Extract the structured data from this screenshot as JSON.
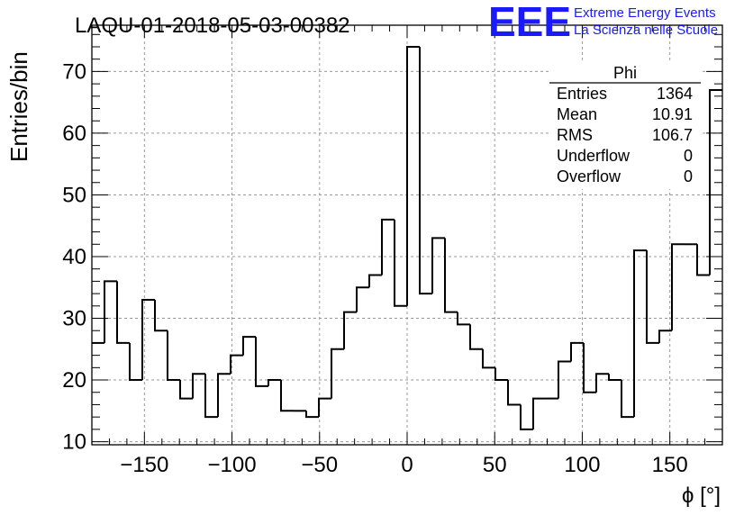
{
  "header": {
    "run_title": "LAQU-01-2018-05-03-00382",
    "logo_text": "EEE",
    "logo_line1": "Extreme Energy Events",
    "logo_line2": "La Scienza nelle Scuole"
  },
  "stats": {
    "name": "Phi",
    "rows": [
      {
        "label": "Entries",
        "value": "1364"
      },
      {
        "label": "Mean",
        "value": "10.91"
      },
      {
        "label": "RMS",
        "value": "106.7"
      },
      {
        "label": "Underflow",
        "value": "0"
      },
      {
        "label": "Overflow",
        "value": "0"
      }
    ]
  },
  "colors": {
    "logo": "#1a1aff",
    "line": "#000000",
    "grid": "#9a9a9a"
  },
  "chart_data": {
    "type": "histogram",
    "title": "LAQU-01-2018-05-03-00382",
    "xlabel": "ϕ [°]",
    "ylabel": "Entries/bin",
    "xlim": [
      -180,
      180
    ],
    "ylim": [
      9.5,
      77.5
    ],
    "bin_width": 7.2,
    "x_ticks": [
      -150,
      -100,
      -50,
      0,
      50,
      100,
      150
    ],
    "y_ticks": [
      10,
      20,
      30,
      40,
      50,
      60,
      70
    ],
    "grid": true,
    "bin_edges_start": -180,
    "values": [
      26,
      36,
      26,
      20,
      33,
      28,
      20,
      17,
      21,
      14,
      21,
      24,
      27,
      19,
      20,
      15,
      15,
      14,
      17,
      25,
      31,
      35,
      37,
      46,
      32,
      74,
      34,
      43,
      31,
      29,
      25,
      22,
      20,
      16,
      12,
      17,
      17,
      23,
      26,
      18,
      21,
      20,
      14,
      41,
      26,
      28,
      42,
      42,
      37,
      67
    ]
  }
}
